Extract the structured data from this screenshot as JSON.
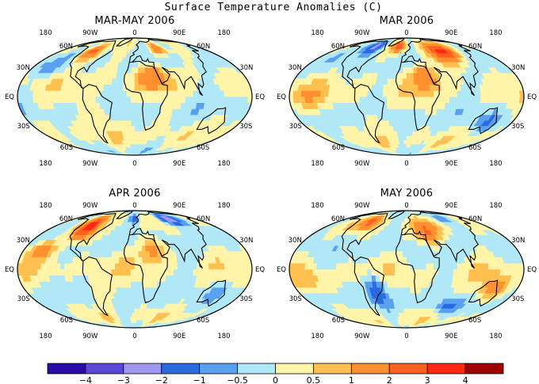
{
  "figure": {
    "title": "Surface Temperature Anomalies (C)"
  },
  "panels": [
    {
      "title": "MAR-MAY 2006",
      "hot_spots": [
        [
          -100,
          50,
          2.5,
          20,
          12
        ],
        [
          60,
          55,
          2.0,
          18,
          10
        ],
        [
          30,
          20,
          1.5,
          25,
          12
        ],
        [
          -60,
          -20,
          0.8,
          20,
          15
        ],
        [
          140,
          -25,
          0.6,
          15,
          10
        ],
        [
          -150,
          30,
          -0.7,
          25,
          10
        ],
        [
          100,
          65,
          -0.8,
          20,
          8
        ]
      ]
    },
    {
      "title": "MAR 2006",
      "hot_spots": [
        [
          -90,
          60,
          -2.8,
          22,
          12
        ],
        [
          80,
          50,
          3.2,
          30,
          15
        ],
        [
          30,
          20,
          1.8,
          20,
          12
        ],
        [
          -60,
          -20,
          0.6,
          18,
          15
        ],
        [
          140,
          -25,
          -0.8,
          18,
          10
        ],
        [
          -20,
          60,
          2.5,
          18,
          10
        ],
        [
          -150,
          0,
          0.6,
          30,
          12
        ]
      ]
    },
    {
      "title": "APR 2006",
      "hot_spots": [
        [
          -100,
          45,
          3.5,
          20,
          15
        ],
        [
          100,
          60,
          -3.2,
          25,
          10
        ],
        [
          30,
          20,
          1.5,
          20,
          12
        ],
        [
          -60,
          -20,
          0.7,
          18,
          15
        ],
        [
          140,
          -25,
          -0.6,
          15,
          10
        ],
        [
          -150,
          20,
          1.2,
          25,
          10
        ],
        [
          0,
          60,
          -1.2,
          15,
          8
        ]
      ]
    },
    {
      "title": "MAY 2006",
      "hot_spots": [
        [
          -90,
          55,
          2.2,
          20,
          12
        ],
        [
          40,
          40,
          2.0,
          22,
          14
        ],
        [
          -50,
          -20,
          -1.8,
          15,
          15
        ],
        [
          140,
          -20,
          1.5,
          18,
          12
        ],
        [
          100,
          60,
          -1.0,
          20,
          8
        ],
        [
          -150,
          -10,
          0.8,
          25,
          12
        ],
        [
          80,
          -40,
          -1.2,
          20,
          8
        ]
      ]
    }
  ],
  "axis": {
    "lon_ticks": [
      "180",
      "90W",
      "0",
      "90E",
      "180"
    ],
    "lat_ticks": [
      "60N",
      "30N",
      "EQ",
      "30S",
      "60S"
    ]
  },
  "colorbar": {
    "labels": [
      "-4",
      "-3",
      "-2",
      "-1",
      "-0.5",
      "0",
      "0.5",
      "1",
      "2",
      "3",
      "4"
    ],
    "colors": [
      "#2a0aa8",
      "#5a48d8",
      "#a098f0",
      "#2a6ae0",
      "#5aa0f0",
      "#b0e8f8",
      "#fff4a8",
      "#ffc050",
      "#ff9030",
      "#ff6020",
      "#ff2810",
      "#a00000"
    ]
  }
}
